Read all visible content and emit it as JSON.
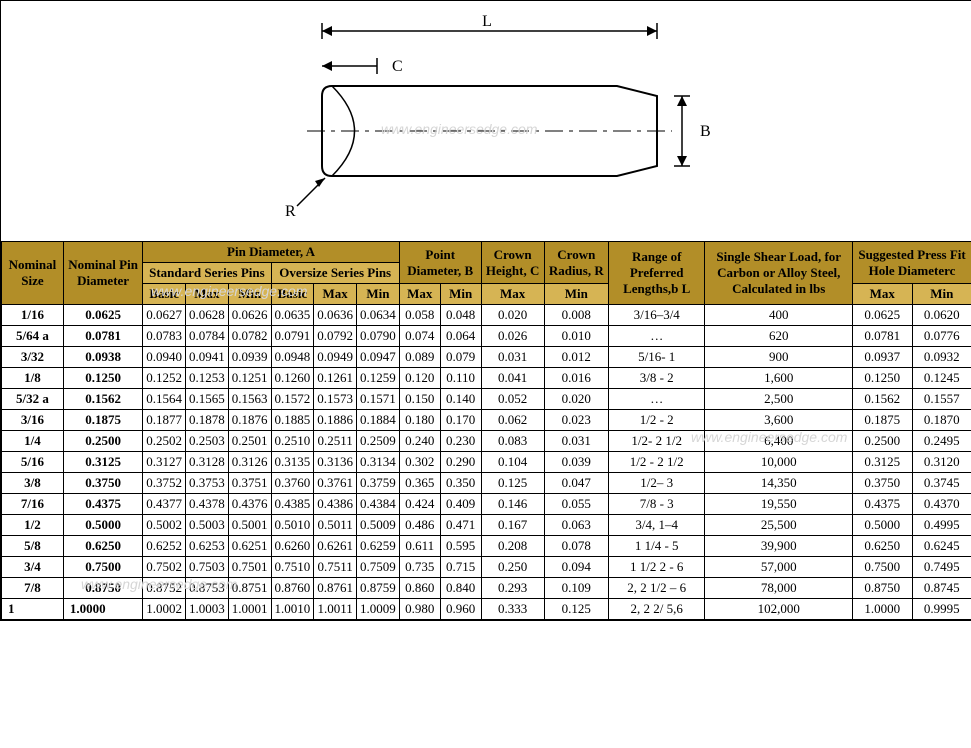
{
  "diagram": {
    "labels": {
      "L": "L",
      "C": "C",
      "B": "B",
      "R": "R"
    },
    "stroke": "#000000",
    "background": "#ffffff",
    "fontsize": 16
  },
  "watermark_text": "www.engineersedge.com",
  "colors": {
    "header_dark": "#b28e28",
    "header_light": "#d6b454",
    "border": "#000000",
    "row_bg": "#ffffff"
  },
  "table": {
    "headers": {
      "nominal_size": "Nominal Size",
      "nominal_pin_diameter": "Nominal Pin Diameter",
      "pin_diameter_A": "Pin Diameter, A",
      "pin_dia_A_italic": true,
      "standard_series": "Standard Series Pins",
      "oversize_series": "Oversize Series Pins",
      "basic": "Basic",
      "max": "Max",
      "min": "Min",
      "point_diameter_B": "Point Diameter, B",
      "crown_height_C": "Crown Height, C",
      "crown_radius_R": "Crown Radius, R",
      "range_lengths": "Range of Preferred Lengths,b L",
      "single_shear": "Single Shear Load, for Carbon or Alloy Steel, Calculated in lbs",
      "press_fit": "Suggested Press Fit Hole Diameterc"
    },
    "rows": [
      {
        "nom_size": "1/16",
        "nom_dia": "0.0625",
        "std_basic": "0.0627",
        "std_max": "0.0628",
        "std_min": "0.0626",
        "ovr_basic": "0.0635",
        "ovr_max": "0.0636",
        "ovr_min": "0.0634",
        "pt_max": "0.058",
        "pt_min": "0.048",
        "ch_max": "0.020",
        "cr_min": "0.008",
        "len": "3/16–3/4",
        "shear": "400",
        "pf_max": "0.0625",
        "pf_min": "0.0620"
      },
      {
        "nom_size": "5/64 a",
        "nom_dia": "0.0781",
        "std_basic": "0.0783",
        "std_max": "0.0784",
        "std_min": "0.0782",
        "ovr_basic": "0.0791",
        "ovr_max": "0.0792",
        "ovr_min": "0.0790",
        "pt_max": "0.074",
        "pt_min": "0.064",
        "ch_max": "0.026",
        "cr_min": "0.010",
        "len": "…",
        "shear": "620",
        "pf_max": "0.0781",
        "pf_min": "0.0776"
      },
      {
        "nom_size": "3/32",
        "nom_dia": "0.0938",
        "std_basic": "0.0940",
        "std_max": "0.0941",
        "std_min": "0.0939",
        "ovr_basic": "0.0948",
        "ovr_max": "0.0949",
        "ovr_min": "0.0947",
        "pt_max": "0.089",
        "pt_min": "0.079",
        "ch_max": "0.031",
        "cr_min": "0.012",
        "len": "5/16- 1",
        "shear": "900",
        "pf_max": "0.0937",
        "pf_min": "0.0932"
      },
      {
        "nom_size": "1/8",
        "nom_dia": "0.1250",
        "std_basic": "0.1252",
        "std_max": "0.1253",
        "std_min": "0.1251",
        "ovr_basic": "0.1260",
        "ovr_max": "0.1261",
        "ovr_min": "0.1259",
        "pt_max": "0.120",
        "pt_min": "0.110",
        "ch_max": "0.041",
        "cr_min": "0.016",
        "len": "3/8 - 2",
        "shear": "1,600",
        "pf_max": "0.1250",
        "pf_min": "0.1245"
      },
      {
        "nom_size": "5/32 a",
        "nom_dia": "0.1562",
        "std_basic": "0.1564",
        "std_max": "0.1565",
        "std_min": "0.1563",
        "ovr_basic": "0.1572",
        "ovr_max": "0.1573",
        "ovr_min": "0.1571",
        "pt_max": "0.150",
        "pt_min": "0.140",
        "ch_max": "0.052",
        "cr_min": "0.020",
        "len": "…",
        "shear": "2,500",
        "pf_max": "0.1562",
        "pf_min": "0.1557"
      },
      {
        "nom_size": "3/16",
        "nom_dia": "0.1875",
        "std_basic": "0.1877",
        "std_max": "0.1878",
        "std_min": "0.1876",
        "ovr_basic": "0.1885",
        "ovr_max": "0.1886",
        "ovr_min": "0.1884",
        "pt_max": "0.180",
        "pt_min": "0.170",
        "ch_max": "0.062",
        "cr_min": "0.023",
        "len": "1/2 - 2",
        "shear": "3,600",
        "pf_max": "0.1875",
        "pf_min": "0.1870"
      },
      {
        "nom_size": "1/4",
        "nom_dia": "0.2500",
        "std_basic": "0.2502",
        "std_max": "0.2503",
        "std_min": "0.2501",
        "ovr_basic": "0.2510",
        "ovr_max": "0.2511",
        "ovr_min": "0.2509",
        "pt_max": "0.240",
        "pt_min": "0.230",
        "ch_max": "0.083",
        "cr_min": "0.031",
        "len": "1/2- 2 1/2",
        "shear": "6,400",
        "pf_max": "0.2500",
        "pf_min": "0.2495"
      },
      {
        "nom_size": "5/16",
        "nom_dia": "0.3125",
        "std_basic": "0.3127",
        "std_max": "0.3128",
        "std_min": "0.3126",
        "ovr_basic": "0.3135",
        "ovr_max": "0.3136",
        "ovr_min": "0.3134",
        "pt_max": "0.302",
        "pt_min": "0.290",
        "ch_max": "0.104",
        "cr_min": "0.039",
        "len": "1/2 - 2 1/2",
        "shear": "10,000",
        "pf_max": "0.3125",
        "pf_min": "0.3120"
      },
      {
        "nom_size": "3/8",
        "nom_dia": "0.3750",
        "std_basic": "0.3752",
        "std_max": "0.3753",
        "std_min": "0.3751",
        "ovr_basic": "0.3760",
        "ovr_max": "0.3761",
        "ovr_min": "0.3759",
        "pt_max": "0.365",
        "pt_min": "0.350",
        "ch_max": "0.125",
        "cr_min": "0.047",
        "len": "1/2– 3",
        "shear": "14,350",
        "pf_max": "0.3750",
        "pf_min": "0.3745"
      },
      {
        "nom_size": "7/16",
        "nom_dia": "0.4375",
        "std_basic": "0.4377",
        "std_max": "0.4378",
        "std_min": "0.4376",
        "ovr_basic": "0.4385",
        "ovr_max": "0.4386",
        "ovr_min": "0.4384",
        "pt_max": "0.424",
        "pt_min": "0.409",
        "ch_max": "0.146",
        "cr_min": "0.055",
        "len": "7/8 - 3",
        "shear": "19,550",
        "pf_max": "0.4375",
        "pf_min": "0.4370"
      },
      {
        "nom_size": "1/2",
        "nom_dia": "0.5000",
        "std_basic": "0.5002",
        "std_max": "0.5003",
        "std_min": "0.5001",
        "ovr_basic": "0.5010",
        "ovr_max": "0.5011",
        "ovr_min": "0.5009",
        "pt_max": "0.486",
        "pt_min": "0.471",
        "ch_max": "0.167",
        "cr_min": "0.063",
        "len": "3/4, 1–4",
        "shear": "25,500",
        "pf_max": "0.5000",
        "pf_min": "0.4995"
      },
      {
        "nom_size": "5/8",
        "nom_dia": "0.6250",
        "std_basic": "0.6252",
        "std_max": "0.6253",
        "std_min": "0.6251",
        "ovr_basic": "0.6260",
        "ovr_max": "0.6261",
        "ovr_min": "0.6259",
        "pt_max": "0.611",
        "pt_min": "0.595",
        "ch_max": "0.208",
        "cr_min": "0.078",
        "len": "1 1/4 - 5",
        "shear": "39,900",
        "pf_max": "0.6250",
        "pf_min": "0.6245"
      },
      {
        "nom_size": "3/4",
        "nom_dia": "0.7500",
        "std_basic": "0.7502",
        "std_max": "0.7503",
        "std_min": "0.7501",
        "ovr_basic": "0.7510",
        "ovr_max": "0.7511",
        "ovr_min": "0.7509",
        "pt_max": "0.735",
        "pt_min": "0.715",
        "ch_max": "0.250",
        "cr_min": "0.094",
        "len": "1 1/2 2 - 6",
        "shear": "57,000",
        "pf_max": "0.7500",
        "pf_min": "0.7495"
      },
      {
        "nom_size": "7/8",
        "nom_dia": "0.8750",
        "std_basic": "0.8752",
        "std_max": "0.8753",
        "std_min": "0.8751",
        "ovr_basic": "0.8760",
        "ovr_max": "0.8761",
        "ovr_min": "0.8759",
        "pt_max": "0.860",
        "pt_min": "0.840",
        "ch_max": "0.293",
        "cr_min": "0.109",
        "len": "2, 2 1/2 – 6",
        "shear": "78,000",
        "pf_max": "0.8750",
        "pf_min": "0.8745"
      },
      {
        "nom_size": "1",
        "nom_dia": "1.0000",
        "std_basic": "1.0002",
        "std_max": "1.0003",
        "std_min": "1.0001",
        "ovr_basic": "1.0010",
        "ovr_max": "1.0011",
        "ovr_min": "1.0009",
        "pt_max": "0.980",
        "pt_min": "0.960",
        "ch_max": "0.333",
        "cr_min": "0.125",
        "len": "2, 2 2/ 5,6",
        "shear": "102,000",
        "pf_max": "1.0000",
        "pf_min": "0.9995",
        "left_align": true
      }
    ]
  }
}
